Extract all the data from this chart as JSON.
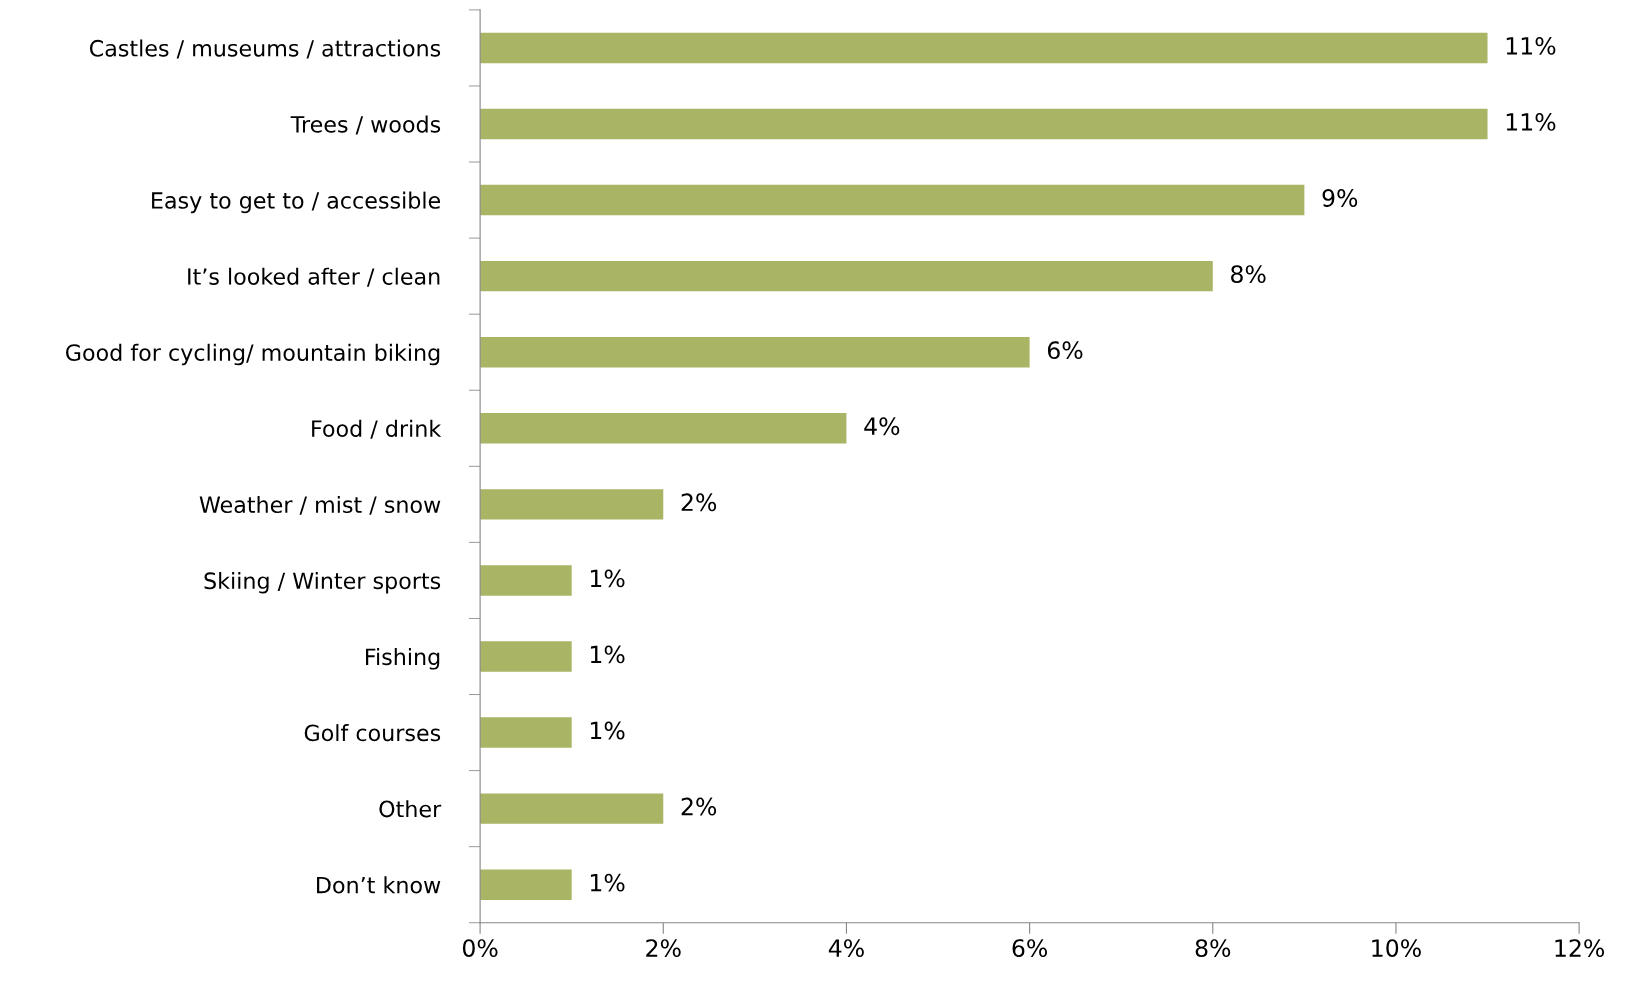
{
  "chart_data": {
    "type": "bar",
    "orientation": "horizontal",
    "categories": [
      "Castles / museums / attractions",
      "Trees / woods",
      "Easy to get to / accessible",
      "It’s looked after / clean",
      "Good for cycling/ mountain biking",
      "Food / drink",
      "Weather / mist / snow",
      "Skiing / Winter sports",
      "Fishing",
      "Golf courses",
      "Other",
      "Don’t know"
    ],
    "values": [
      11,
      11,
      9,
      8,
      6,
      4,
      2,
      1,
      1,
      1,
      2,
      1
    ],
    "value_labels": [
      "11%",
      "11%",
      "9%",
      "8%",
      "6%",
      "4%",
      "2%",
      "1%",
      "1%",
      "1%",
      "2%",
      "1%"
    ],
    "color": "#a9b464",
    "xlim": [
      0,
      12
    ],
    "xticks": [
      {
        "value": 0,
        "label": "0%"
      },
      {
        "value": 2,
        "label": "2%"
      },
      {
        "value": 4,
        "label": "4%"
      },
      {
        "value": 6,
        "label": "6%"
      },
      {
        "value": 8,
        "label": "8%"
      },
      {
        "value": 10,
        "label": "10%"
      },
      {
        "value": 12,
        "label": "12%"
      }
    ],
    "grid": false,
    "legend": false
  }
}
